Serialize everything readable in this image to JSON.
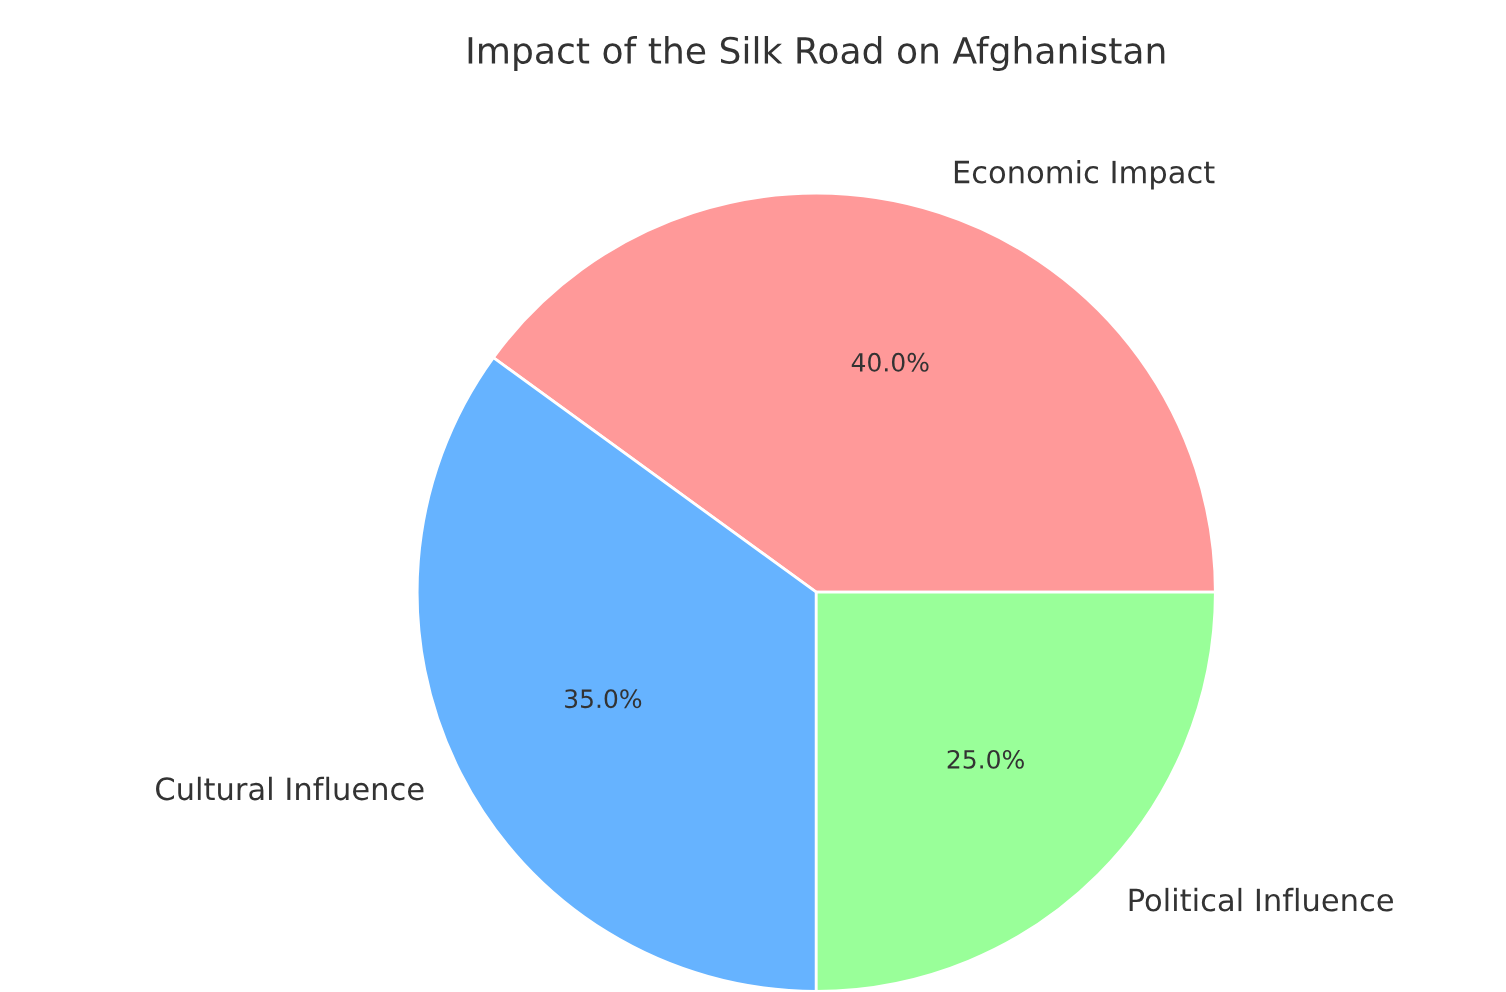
{
  "chart_data": {
    "type": "pie",
    "title": "Impact of the Silk Road on Afghanistan",
    "categories": [
      "Economic Impact",
      "Cultural Influence",
      "Political Influence"
    ],
    "values": [
      40,
      35,
      25
    ],
    "colors": [
      "#ff9999",
      "#66b3ff",
      "#99ff99"
    ],
    "value_labels": [
      "40.0%",
      "35.0%",
      "25.0%"
    ]
  }
}
